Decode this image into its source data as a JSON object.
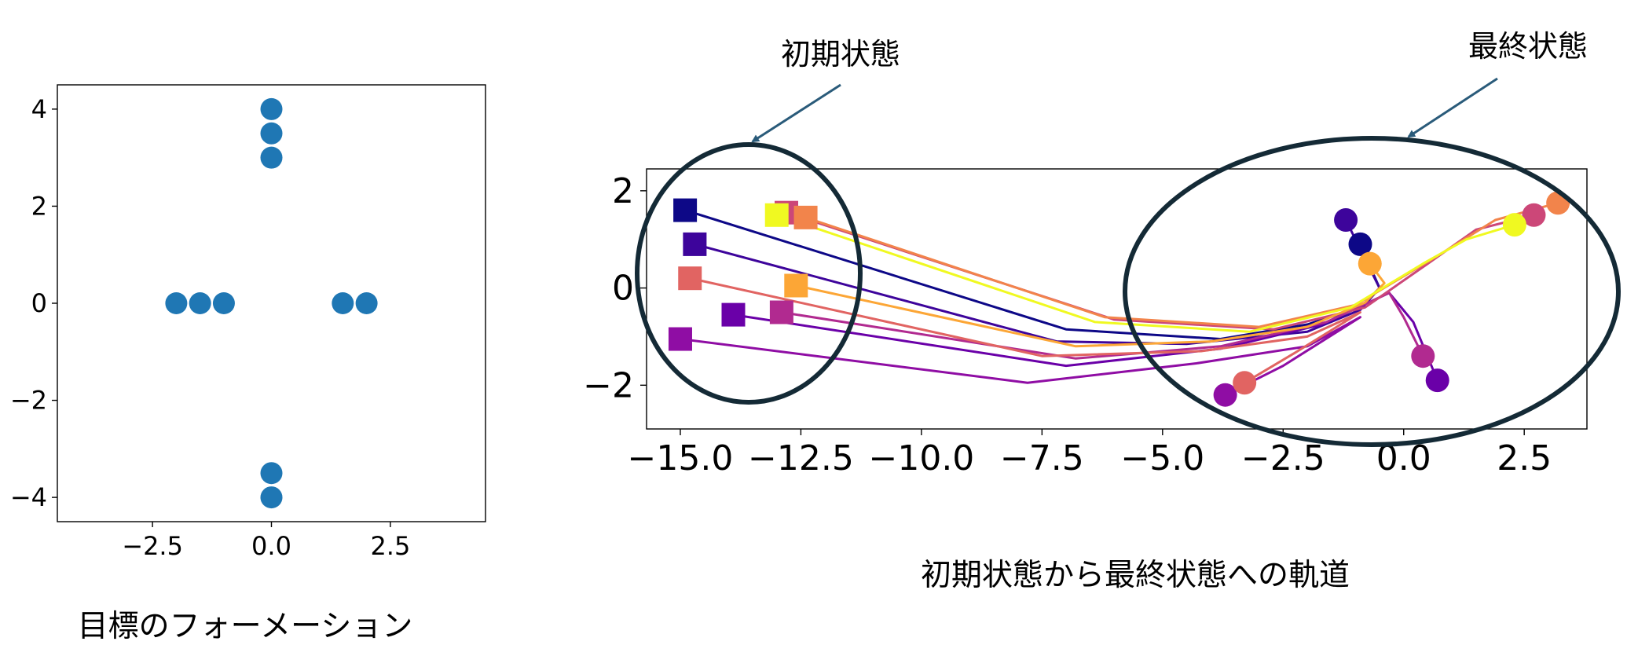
{
  "chart_data": [
    {
      "type": "scatter",
      "caption": "目標のフォーメーション",
      "marker_color": "#1f77b4",
      "xlim": [
        -4.5,
        4.5
      ],
      "ylim": [
        -4.5,
        4.5
      ],
      "xticks": [
        -2.5,
        0.0,
        2.5
      ],
      "yticks": [
        4,
        2,
        0,
        -2,
        -4
      ],
      "xtick_labels": [
        "−2.5",
        "0.0",
        "2.5"
      ],
      "ytick_labels": [
        "4",
        "2",
        "0",
        "−2",
        "−4"
      ],
      "points": [
        {
          "x": 0,
          "y": 4
        },
        {
          "x": 0,
          "y": 3.5
        },
        {
          "x": 0,
          "y": 3
        },
        {
          "x": -2,
          "y": 0
        },
        {
          "x": -1.5,
          "y": 0
        },
        {
          "x": -1,
          "y": 0
        },
        {
          "x": 1.5,
          "y": 0
        },
        {
          "x": 2,
          "y": 0
        },
        {
          "x": 0,
          "y": -3.5
        },
        {
          "x": 0,
          "y": -4
        }
      ]
    },
    {
      "type": "line",
      "caption": "初期状態から最終状態への軌道",
      "annotations": [
        {
          "text": "初期状態"
        },
        {
          "text": "最終状態"
        }
      ],
      "xlim": [
        -15.7,
        3.8
      ],
      "ylim": [
        -2.9,
        2.45
      ],
      "xticks": [
        -15,
        -12.5,
        -10,
        -7.5,
        -5,
        -2.5,
        0,
        2.5
      ],
      "yticks": [
        2,
        0,
        -2
      ],
      "xtick_labels": [
        "−15.0",
        "−12.5",
        "−10.0",
        "−7.5",
        "−5.0",
        "−2.5",
        "0.0",
        "2.5"
      ],
      "ytick_labels": [
        "2",
        "0",
        "−2"
      ],
      "series": [
        {
          "color": "#0d0887",
          "start": [
            -14.9,
            1.6
          ],
          "end": [
            -0.9,
            0.9
          ],
          "path": [
            [
              -14.9,
              1.6
            ],
            [
              -7.0,
              -0.85
            ],
            [
              -3.8,
              -1.05
            ],
            [
              -2.0,
              -0.75
            ],
            [
              -0.9,
              -0.4
            ],
            [
              -0.5,
              0.0
            ],
            [
              -0.9,
              0.9
            ]
          ]
        },
        {
          "color": "#3d049b",
          "start": [
            -14.7,
            0.9
          ],
          "end": [
            -1.2,
            1.4
          ],
          "path": [
            [
              -14.7,
              0.9
            ],
            [
              -7.2,
              -1.1
            ],
            [
              -4.5,
              -1.15
            ],
            [
              -2.0,
              -0.9
            ],
            [
              -0.9,
              -0.45
            ],
            [
              -0.5,
              0.0
            ],
            [
              -1.2,
              1.4
            ]
          ]
        },
        {
          "color": "#6a00a8",
          "start": [
            -13.9,
            -0.55
          ],
          "end": [
            0.7,
            -1.9
          ],
          "path": [
            [
              -13.9,
              -0.55
            ],
            [
              -7.0,
              -1.6
            ],
            [
              -3.8,
              -1.25
            ],
            [
              -1.7,
              -0.75
            ],
            [
              -0.3,
              -0.1
            ],
            [
              0.2,
              -0.7
            ],
            [
              0.7,
              -1.9
            ]
          ]
        },
        {
          "color": "#8f0da4",
          "start": [
            -15.0,
            -1.05
          ],
          "end": [
            -3.7,
            -2.2
          ],
          "path": [
            [
              -15.0,
              -1.05
            ],
            [
              -7.8,
              -1.95
            ],
            [
              -4.3,
              -1.55
            ],
            [
              -2.0,
              -1.2
            ],
            [
              -0.9,
              -0.6
            ],
            [
              -2.5,
              -1.6
            ],
            [
              -3.7,
              -2.2
            ]
          ]
        },
        {
          "color": "#b12a90",
          "start": [
            -12.9,
            -0.5
          ],
          "end": [
            0.4,
            -1.4
          ],
          "path": [
            [
              -12.9,
              -0.5
            ],
            [
              -6.8,
              -1.45
            ],
            [
              -3.8,
              -1.2
            ],
            [
              -1.6,
              -0.7
            ],
            [
              -0.3,
              -0.1
            ],
            [
              0.0,
              -0.6
            ],
            [
              0.4,
              -1.4
            ]
          ]
        },
        {
          "color": "#cc4778",
          "start": [
            -12.8,
            1.55
          ],
          "end": [
            2.7,
            1.5
          ],
          "path": [
            [
              -12.8,
              1.55
            ],
            [
              -6.0,
              -0.65
            ],
            [
              -2.7,
              -0.85
            ],
            [
              -0.8,
              -0.4
            ],
            [
              0.5,
              0.5
            ],
            [
              1.5,
              1.2
            ],
            [
              2.7,
              1.5
            ]
          ]
        },
        {
          "color": "#e16462",
          "start": [
            -14.8,
            0.2
          ],
          "end": [
            -3.3,
            -1.95
          ],
          "path": [
            [
              -14.8,
              0.2
            ],
            [
              -7.5,
              -1.4
            ],
            [
              -4.2,
              -1.3
            ],
            [
              -2.0,
              -1.0
            ],
            [
              -0.9,
              -0.5
            ],
            [
              -2.2,
              -1.3
            ],
            [
              -3.3,
              -1.95
            ]
          ]
        },
        {
          "color": "#f2844b",
          "start": [
            -12.4,
            1.45
          ],
          "end": [
            3.2,
            1.75
          ],
          "path": [
            [
              -12.4,
              1.45
            ],
            [
              -6.2,
              -0.6
            ],
            [
              -3.0,
              -0.8
            ],
            [
              -1.0,
              -0.35
            ],
            [
              0.6,
              0.6
            ],
            [
              1.9,
              1.4
            ],
            [
              3.2,
              1.75
            ]
          ]
        },
        {
          "color": "#fca636",
          "start": [
            -12.6,
            0.05
          ],
          "end": [
            -0.7,
            0.5
          ],
          "path": [
            [
              -12.6,
              0.05
            ],
            [
              -6.8,
              -1.2
            ],
            [
              -4.0,
              -1.1
            ],
            [
              -2.0,
              -0.8
            ],
            [
              -0.8,
              -0.3
            ],
            [
              -0.4,
              0.1
            ],
            [
              -0.7,
              0.5
            ]
          ]
        },
        {
          "color": "#f0f921",
          "start": [
            -13.0,
            1.5
          ],
          "end": [
            2.3,
            1.3
          ],
          "path": [
            [
              -13.0,
              1.5
            ],
            [
              -6.4,
              -0.7
            ],
            [
              -3.2,
              -0.9
            ],
            [
              -1.1,
              -0.4
            ],
            [
              0.4,
              0.5
            ],
            [
              1.3,
              1.0
            ],
            [
              2.3,
              1.3
            ]
          ]
        }
      ]
    }
  ]
}
